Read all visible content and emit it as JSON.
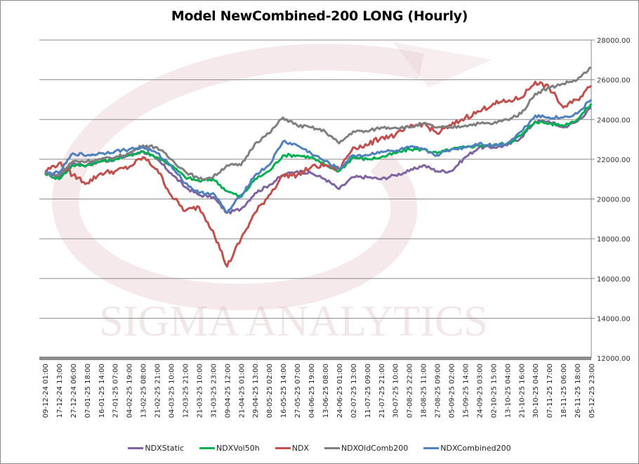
{
  "chart_data": {
    "type": "line",
    "title": "Model NewCombined-200 LONG (Hourly)",
    "xlabel": "",
    "ylabel": "",
    "ylim": [
      12000,
      28000
    ],
    "yticks": [
      "28000.00",
      "26000.00",
      "24000.00",
      "22000.00",
      "20000.00",
      "18000.00",
      "16000.00",
      "14000.00",
      "12000.00"
    ],
    "ytick_values": [
      28000,
      26000,
      24000,
      22000,
      20000,
      18000,
      16000,
      14000,
      12000
    ],
    "y_axis_position": "right",
    "grid": true,
    "legend_position": "bottom",
    "watermark": "SIGMA ANALYTICS",
    "categories": [
      "09-12-24 01:00",
      "17-12-24 13:00",
      "27-12-24 06:00",
      "07-01-25 18:00",
      "16-01-25 14:00",
      "27-01-25 07:00",
      "04-02-25 19:00",
      "13-02-25 08:00",
      "21-02-25 21:00",
      "04-03-25 10:00",
      "12-03-25 21:00",
      "21-03-25 10:00",
      "31-03-25 23:00",
      "09-04-25 12:00",
      "21-04-25 01:00",
      "29-04-25 13:00",
      "08-05-25 02:00",
      "16-05-25 14:00",
      "27-05-25 07:00",
      "04-06-25 19:00",
      "13-06-25 08:00",
      "24-06-25 01:00",
      "02-07-25 13:00",
      "11-07-25 09:00",
      "21-07-25 21:00",
      "30-07-25 10:00",
      "07-08-25 22:00",
      "18-08-25 11:00",
      "27-08-25 09:00",
      "05-09-25 02:00",
      "15-09-25 14:00",
      "24-09-25 03:00",
      "02-10-25 15:00",
      "13-10-25 04:00",
      "21-10-25 16:00",
      "30-10-25 04:00",
      "07-11-25 17:00",
      "18-11-25 06:00",
      "26-11-25 18:00",
      "05-12-25 23:00"
    ],
    "series": [
      {
        "name": "NDXStatic",
        "color": "#8064a2",
        "values": [
          21300,
          21100,
          21800,
          21700,
          21900,
          22000,
          22200,
          22400,
          22000,
          21300,
          20600,
          20200,
          20100,
          19300,
          19500,
          20300,
          20700,
          21200,
          21400,
          21300,
          21000,
          20500,
          21100,
          21100,
          21000,
          21200,
          21400,
          21700,
          21400,
          21400,
          22100,
          22600,
          22600,
          22700,
          23100,
          23900,
          23900,
          23600,
          23900,
          24600
        ]
      },
      {
        "name": "NDXVol50h",
        "color": "#00b050",
        "values": [
          21300,
          21000,
          21700,
          21700,
          21900,
          22000,
          22200,
          22400,
          22100,
          21700,
          21100,
          20900,
          21000,
          20400,
          20100,
          21000,
          21400,
          22200,
          22200,
          22100,
          21700,
          21400,
          22100,
          22000,
          22100,
          22300,
          22500,
          22500,
          22300,
          22500,
          22600,
          22700,
          22700,
          22800,
          23200,
          23900,
          23800,
          23700,
          24000,
          24800
        ]
      },
      {
        "name": "NDX",
        "color": "#c0504d",
        "values": [
          21400,
          21800,
          21200,
          20800,
          21300,
          21400,
          21600,
          22100,
          21500,
          20200,
          19400,
          19600,
          18400,
          16600,
          18000,
          19300,
          20200,
          21200,
          21200,
          21600,
          21700,
          21500,
          22600,
          22700,
          23100,
          23200,
          23600,
          23800,
          23300,
          23700,
          24100,
          24400,
          24800,
          24900,
          25100,
          25900,
          25600,
          24600,
          25000,
          25700
        ]
      },
      {
        "name": "NDXOldComb200",
        "color": "#7f7f7f",
        "values": [
          21300,
          21200,
          21900,
          21900,
          22000,
          22100,
          22300,
          22700,
          22600,
          22000,
          21400,
          21000,
          21100,
          21700,
          21700,
          22800,
          23300,
          24100,
          23700,
          23600,
          23400,
          22800,
          23400,
          23400,
          23600,
          23600,
          23600,
          23800,
          23600,
          23600,
          23700,
          23800,
          23800,
          24000,
          24300,
          25300,
          25600,
          25800,
          26000,
          26600
        ]
      },
      {
        "name": "NDXCombined200",
        "color": "#4f81bd",
        "values": [
          21300,
          21300,
          22300,
          22200,
          22300,
          22400,
          22500,
          22600,
          22300,
          21700,
          20800,
          20300,
          20300,
          19300,
          20200,
          21200,
          21700,
          22900,
          22700,
          22300,
          21900,
          21500,
          22200,
          22200,
          22400,
          22400,
          22600,
          22500,
          22200,
          22500,
          22600,
          22800,
          22700,
          22800,
          23400,
          24200,
          24100,
          24100,
          24300,
          25000
        ]
      }
    ]
  },
  "legend": {
    "items": [
      "NDXStatic",
      "NDXVol50h",
      "NDX",
      "NDXOldComb200",
      "NDXCombined200"
    ]
  }
}
